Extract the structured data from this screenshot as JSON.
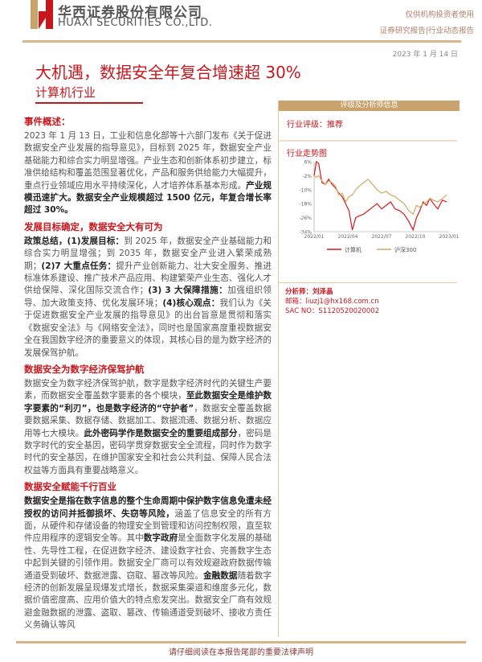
{
  "header": {
    "company_cn": "华西证券股份有限公司",
    "company_en": "HUAXI SECURITIES CO.,LTD.",
    "usage": "仅供机构投资者使用",
    "report_type": "证券研究报告|行业动态报告",
    "date": "2023 年 1 月 14 日"
  },
  "title": "大机遇，数据安全年复合增速超 30%",
  "subtitle": "计算机行业",
  "sections": [
    {
      "heading": "事件概述：",
      "paras": [
        [
          {
            "t": "2023 年 1 月 13 日，工业和信息化部等十六部门发布《关于促进数据安全产业发展的指导意见》，目标到 2025 年，数据安全产业基础能力和综合实力明显增强。产业生态和创新体系初步建立，标准供给结构和覆盖范围显著优化，产品和服务供给能力大幅提升，重点行业领域应用水平持续深化，人才培养体系基本形成。",
            "b": false
          },
          {
            "t": "产业规模迅速扩大。数据安全产业规模超过 1500 亿元，年复合增长率超过 30%。",
            "b": true
          }
        ]
      ]
    },
    {
      "heading": "发展目标确定，数据安全大有可为",
      "paras": [
        [
          {
            "t": "政策总结，(1)发展目标：",
            "b": true
          },
          {
            "t": "到 2025 年，数据安全产业基础能力和综合实力明显增强；到 2035 年，数据安全产业进入繁荣成熟期；",
            "b": false
          },
          {
            "t": "(2)7 大重点任务：",
            "b": true
          },
          {
            "t": "提升产业创新能力、壮大安全服务、推进标准体系建设、推广技术产品应用、构建繁荣产业生态、强化人才供给保障、深化国际交流合作；",
            "b": false
          },
          {
            "t": "(3) 3 大保障措施：",
            "b": true
          },
          {
            "t": "加强组织领导、加大政策支持、优化发展环境；",
            "b": false
          },
          {
            "t": "(4)核心观点：",
            "b": true
          },
          {
            "t": "我们认为《关于促进数据安全产业发展的指导意见》的出台旨意是贯彻和落实《数据安全法》与《网络安全法》，同时也是国家高度重视数据安全在我国数字经济的重要意义的体现，其核心目的是为数字经济的发展保驾护航。",
            "b": false
          }
        ]
      ]
    },
    {
      "heading": "数据安全为数字经济保驾护航",
      "paras": [
        [
          {
            "t": "数据安全为数字经济保驾护航，数字是数字经济时代的关键生产要素，而数据安全覆盖数字要素的各个模块，",
            "b": false
          },
          {
            "t": "至此数据安全是维护数字要素的“利刃”，也是数字经济的“守护者”",
            "b": true
          },
          {
            "t": "，数据安全覆盖数据要数据采集、数据存储、数据加工、数据流通、数据分析、数据应用等七大模块。",
            "b": false
          },
          {
            "t": "此外密码学作是数据安全的重要组成部分",
            "b": true
          },
          {
            "t": "，密码是数字时代的安全基因，密码学贯穿数据安全全流程，同时作为数字时代的安全基因，在维护国家安全和社会公共利益、保障人民合法权益等方面具有重要战略意义。",
            "b": false
          }
        ]
      ]
    },
    {
      "heading": "数据安全赋能千行百业",
      "paras": [
        [
          {
            "t": "数据安全是指在数字信息的整个生命周期中保护数字信息免遭未经授权的访问并抵御损坏、失窃等风险，",
            "b": true
          },
          {
            "t": "涵盖了信息安全的所有方面，从硬件和存储设备的物理安全到管理和访问控制权限，直至软件应用程序的逻辑安全等。其中",
            "b": false
          },
          {
            "t": "数字政府",
            "b": true
          },
          {
            "t": "是全面数字化发展的基础性、先导性工程，在促进数字经济、建设数字社会、完善数字生态中起到关键的引领作用。数据安全厂商可以有效规避政府数据传输通道受到破坏、数据泄露、窃取、篡改等风险。",
            "b": false
          },
          {
            "t": "金融数据",
            "b": true
          },
          {
            "t": "随着数字经济的创新发展呈现爆发式增长，数据采集渠道和维度多元化，数据价值密度高、应用价值大的特点愈发突出。数据安全厂商有效规避金融数据的泄露、盗取、篡改、传输通道受到破坏、接收方责任义务确认等风",
            "b": false
          }
        ]
      ]
    }
  ],
  "sidebar": {
    "header": "评级及分析师信息",
    "rating": "行业评级：推荐",
    "trend_title": "行业走势图",
    "analyst": "分析师：刘泽晶",
    "email": "邮箱：liuzj1@hx168.com.cn",
    "sac": "SAC NO：S1120520020002"
  },
  "chart_data": {
    "type": "line",
    "ylim": [
      -34,
      6
    ],
    "yticks": [
      "6%",
      "-2%",
      "-10%",
      "-18%",
      "-26%",
      "-34%"
    ],
    "ytick_values": [
      6,
      -2,
      -10,
      -18,
      -26,
      -34
    ],
    "xticks": [
      "2022/01",
      "2022/04",
      "2022/07",
      "2022/10",
      "2023/01"
    ],
    "xlim": [
      0,
      12
    ],
    "x": [
      0,
      0.2,
      0.4,
      0.7,
      1,
      1.3,
      1.6,
      1.9,
      2.2,
      2.5,
      2.8,
      3.1,
      3.4,
      3.7,
      4,
      4.4,
      4.8,
      5.2,
      5.6,
      6,
      6.4,
      6.8,
      7.2,
      7.6,
      8,
      8.4,
      8.8,
      9.1,
      9.4,
      9.7,
      10,
      10.3,
      10.6,
      11,
      11.4,
      11.8
    ],
    "series": [
      {
        "name": "计算机",
        "color": "#d7191c",
        "values": [
          -2,
          6,
          5,
          -6,
          -7,
          -4,
          -7,
          -9,
          -12,
          -14,
          -18,
          -22,
          -33,
          -26,
          -25,
          -24,
          -22,
          -20,
          -18,
          -21,
          -19,
          -17,
          -21,
          -22,
          -24,
          -28,
          -33,
          -26,
          -22,
          -17,
          -19,
          -15,
          -18,
          -21,
          -16,
          -17
        ]
      },
      {
        "name": "沪深300",
        "color": "#d2a85e",
        "values": [
          -2,
          -3,
          -2,
          -5,
          -7,
          -5,
          -6,
          -8,
          -13,
          -12,
          -17,
          -14,
          -13,
          -10,
          -8,
          -6,
          -4,
          -7,
          -10,
          -12,
          -11,
          -13,
          -14,
          -16,
          -18,
          -22,
          -24,
          -19,
          -20,
          -18,
          -17,
          -15,
          -16,
          -17,
          -15,
          -13
        ]
      }
    ]
  },
  "footer": "请仔细阅读在本报告尾部的重要法律声明"
}
